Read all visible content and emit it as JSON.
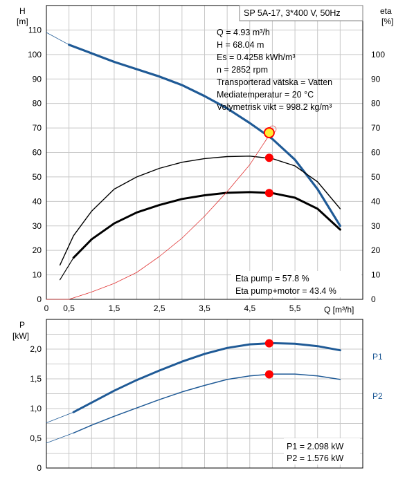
{
  "title_box": "SP 5A-17, 3*400 V, 50Hz",
  "info_lines": [
    "Q = 4.93 m³/h",
    "H = 68.04 m",
    "Es = 0.4258 kWh/m³",
    "n = 2852 rpm",
    "Transporterad vätska = Vatten",
    "Mediatemperatur = 20 °C",
    "Volymetrisk vikt = 998.2 kg/m³"
  ],
  "eta_notes": [
    "Eta pump = 57.8 %",
    "Eta pump+motor = 43.4 %"
  ],
  "power_notes": [
    "P1 = 2.098 kW",
    "P2 = 1.576 kW"
  ],
  "colors": {
    "head": "#1f5a96",
    "p1": "#1f5a96",
    "p2": "#1f5a96",
    "eta_pump": "#000000",
    "eta_total": "#000000",
    "system": "#e03030",
    "marker": "#ff0000",
    "duty_fill": "#ffee33",
    "grid": "#c8c8c8",
    "label_blue": "#1f5a96"
  },
  "chart_data": [
    {
      "type": "line",
      "xlabel": "Q [m³/h]",
      "ylabel_left": "H\n[m]",
      "ylabel_right": "eta\n[%]",
      "xlim": [
        0,
        7.0
      ],
      "ylim": [
        0,
        120
      ],
      "xticks": [
        0,
        0.5,
        1,
        1.5,
        2,
        2.5,
        3,
        3.5,
        4,
        4.5,
        5,
        5.5,
        6,
        6.5
      ],
      "xtick_labels": [
        "0",
        "0,5",
        "",
        "1,5",
        "",
        "2,5",
        "",
        "3,5",
        "",
        "4,5",
        "",
        "5,5",
        "",
        ""
      ],
      "yticks_left": [
        0,
        10,
        20,
        30,
        40,
        50,
        60,
        70,
        80,
        90,
        100,
        110
      ],
      "yticks_right": [
        0,
        10,
        20,
        30,
        40,
        50,
        60,
        70,
        80,
        90,
        100
      ],
      "series": [
        {
          "id": "head",
          "x": [
            0.5,
            1.0,
            1.5,
            2.0,
            2.5,
            3.0,
            3.5,
            4.0,
            4.5,
            5.0,
            5.5,
            6.0,
            6.5
          ],
          "y": [
            104,
            100.5,
            97,
            94,
            91,
            87.5,
            83,
            78,
            72,
            65.5,
            57,
            45,
            30
          ]
        },
        {
          "id": "head_extension",
          "x": [
            0,
            0.5
          ],
          "y": [
            109,
            104
          ]
        },
        {
          "id": "eta_pump",
          "x": [
            0.3,
            0.6,
            1.0,
            1.5,
            2.0,
            2.5,
            3.0,
            3.5,
            4.0,
            4.5,
            5.0,
            5.5,
            6.0,
            6.5
          ],
          "y": [
            14,
            26,
            36,
            45,
            50,
            53.5,
            56,
            57.5,
            58.3,
            58.5,
            57.5,
            54.5,
            48,
            37
          ]
        },
        {
          "id": "eta_total",
          "x": [
            0.6,
            1.0,
            1.5,
            2.0,
            2.5,
            3.0,
            3.5,
            4.0,
            4.5,
            5.0,
            5.5,
            6.0,
            6.5
          ],
          "y": [
            17,
            24.5,
            31,
            35.5,
            38.5,
            41,
            42.5,
            43.5,
            43.8,
            43.4,
            41.5,
            37,
            28.5
          ]
        },
        {
          "id": "eta_total_extension",
          "x": [
            0.3,
            0.6
          ],
          "y": [
            8,
            17
          ]
        },
        {
          "id": "system",
          "x": [
            0,
            0.5,
            1.0,
            1.5,
            2.0,
            2.5,
            3.0,
            3.5,
            4.0,
            4.5,
            5.0
          ],
          "y": [
            0,
            0,
            3,
            6.5,
            11,
            17.5,
            25,
            34,
            44,
            55,
            69
          ]
        }
      ],
      "markers": [
        {
          "id": "duty",
          "x": 4.93,
          "y": 68.04
        },
        {
          "id": "eta_pump_point",
          "x": 4.93,
          "y": 57.8
        },
        {
          "id": "eta_total_point",
          "x": 4.93,
          "y": 43.4
        }
      ]
    },
    {
      "type": "line",
      "ylabel": "P\n[kW]",
      "xlim": [
        0,
        7.0
      ],
      "ylim": [
        0,
        2.5
      ],
      "yticks": [
        0,
        0.5,
        1.0,
        1.5,
        2.0
      ],
      "ytick_labels": [
        "0",
        "0,5",
        "1,0",
        "1,5",
        "2,0"
      ],
      "series": [
        {
          "id": "P1",
          "name": "P1",
          "x": [
            0.6,
            1.0,
            1.5,
            2.0,
            2.5,
            3.0,
            3.5,
            4.0,
            4.5,
            5.0,
            5.5,
            6.0,
            6.5
          ],
          "y": [
            0.94,
            1.1,
            1.3,
            1.48,
            1.64,
            1.79,
            1.92,
            2.02,
            2.08,
            2.1,
            2.09,
            2.05,
            1.98
          ]
        },
        {
          "id": "P1_extension",
          "x": [
            0,
            0.6
          ],
          "y": [
            0.76,
            0.94
          ]
        },
        {
          "id": "P2",
          "name": "P2",
          "x": [
            0.6,
            1.0,
            1.5,
            2.0,
            2.5,
            3.0,
            3.5,
            4.0,
            4.5,
            5.0,
            5.5,
            6.0,
            6.5
          ],
          "y": [
            0.59,
            0.72,
            0.87,
            1.01,
            1.15,
            1.28,
            1.39,
            1.49,
            1.55,
            1.58,
            1.58,
            1.55,
            1.49
          ]
        },
        {
          "id": "P2_extension",
          "x": [
            0,
            0.6
          ],
          "y": [
            0.42,
            0.59
          ]
        }
      ],
      "markers": [
        {
          "id": "p1_point",
          "x": 4.93,
          "y": 2.098
        },
        {
          "id": "p2_point",
          "x": 4.93,
          "y": 1.576
        }
      ]
    }
  ]
}
